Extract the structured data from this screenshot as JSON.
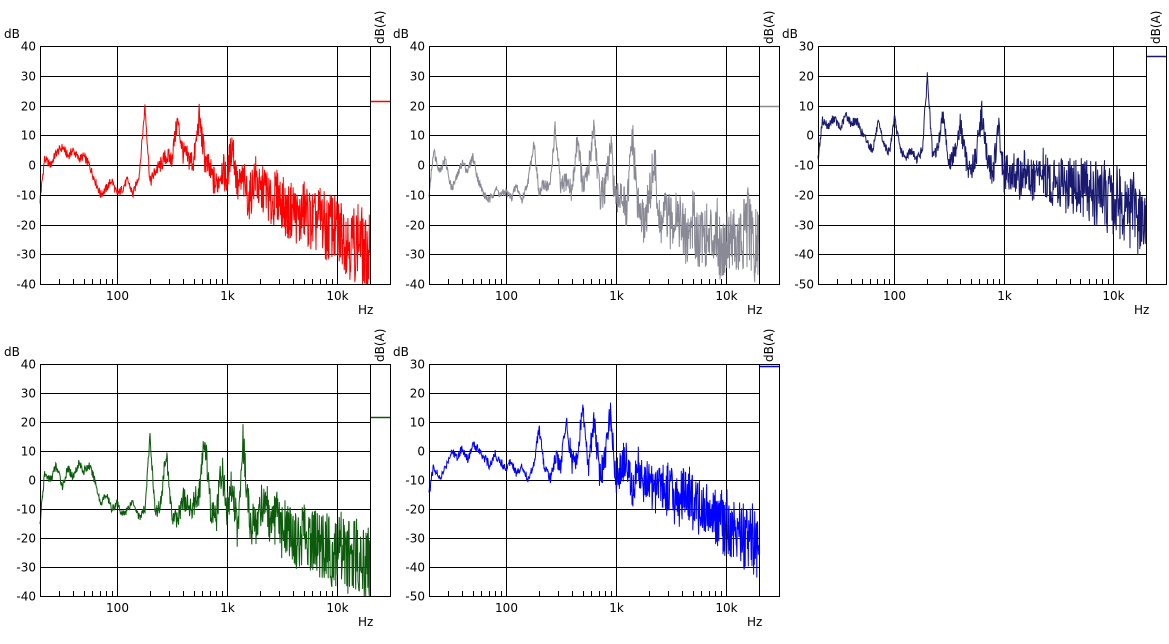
{
  "chart_data": [
    {
      "type": "line",
      "color": "#ff0000",
      "ylabel": "dB",
      "xlabel": "Hz",
      "level_label": "dB(A)",
      "level_fill": 0.77,
      "xscale": "log",
      "xlim": [
        20,
        20000
      ],
      "ylim": [
        -40,
        40
      ],
      "yticks": [
        40,
        30,
        20,
        10,
        0,
        -10,
        -20,
        -30,
        -40
      ],
      "xticks": [
        {
          "v": 100,
          "label": "100"
        },
        {
          "v": 1000,
          "label": "1k"
        },
        {
          "v": 10000,
          "label": "10k"
        }
      ],
      "grid": true,
      "series": [
        {
          "x": [
            20,
            22,
            25,
            28,
            32,
            36,
            40,
            45,
            50,
            56,
            63,
            71,
            80,
            90,
            100,
            112,
            125,
            140,
            160,
            180,
            200,
            224,
            250,
            280,
            315,
            355,
            400,
            450,
            500,
            560,
            630,
            710,
            800,
            900,
            1000,
            1120,
            1250,
            1400,
            1600,
            1800,
            2000,
            2240,
            2500,
            2800,
            3150,
            3550,
            4000,
            4500,
            5000,
            5600,
            6300,
            7100,
            8000,
            9000,
            10000,
            11200,
            12500,
            14000,
            16000,
            18000,
            20000
          ],
          "y": [
            -12,
            2,
            0,
            4,
            6,
            3,
            5,
            2,
            3,
            0,
            -5,
            -10,
            -8,
            -5,
            -10,
            -8,
            -5,
            -10,
            -3,
            20,
            -6,
            -2,
            0,
            3,
            2,
            15,
            4,
            2,
            1,
            16,
            2,
            -3,
            -7,
            -1,
            -5,
            8,
            -8,
            -5,
            -12,
            -3,
            -10,
            -7,
            -14,
            -10,
            -12,
            -17,
            -14,
            -19,
            -15,
            -18,
            -20,
            -17,
            -22,
            -20,
            -24,
            -22,
            -25,
            -27,
            -24,
            -32,
            -28
          ]
        }
      ]
    },
    {
      "type": "line",
      "color": "#8a8a96",
      "ylabel": "dB",
      "xlabel": "Hz",
      "level_label": "dB(A)",
      "level_fill": 0.75,
      "xscale": "log",
      "xlim": [
        20,
        20000
      ],
      "ylim": [
        -40,
        40
      ],
      "yticks": [
        40,
        30,
        20,
        10,
        0,
        -10,
        -20,
        -30,
        -40
      ],
      "xticks": [
        {
          "v": 100,
          "label": "100"
        },
        {
          "v": 1000,
          "label": "1k"
        },
        {
          "v": 10000,
          "label": "10k"
        }
      ],
      "grid": true,
      "series": [
        {
          "x": [
            20,
            22,
            25,
            28,
            32,
            36,
            40,
            45,
            50,
            56,
            63,
            71,
            80,
            90,
            100,
            112,
            125,
            140,
            160,
            180,
            200,
            224,
            250,
            280,
            315,
            355,
            400,
            450,
            500,
            560,
            630,
            710,
            800,
            900,
            1000,
            1120,
            1250,
            1400,
            1600,
            1800,
            2000,
            2240,
            2500,
            2800,
            3150,
            3550,
            4000,
            4500,
            5000,
            5600,
            6300,
            7100,
            8000,
            9000,
            10000,
            11200,
            12500,
            14000,
            16000,
            18000,
            20000
          ],
          "y": [
            -10,
            5,
            -2,
            2,
            -8,
            -4,
            1,
            -2,
            3,
            -5,
            -10,
            -12,
            -8,
            -10,
            -9,
            -11,
            -7,
            -12,
            -5,
            8,
            -10,
            -6,
            -8,
            12,
            -8,
            -5,
            -9,
            10,
            -8,
            -3,
            14,
            -10,
            -8,
            6,
            -14,
            -8,
            -18,
            10,
            -15,
            -20,
            -12,
            2,
            -22,
            -16,
            -20,
            -14,
            -22,
            -25,
            -18,
            -24,
            -22,
            -26,
            -20,
            -28,
            -25,
            -22,
            -28,
            -26,
            -20,
            -30,
            -26
          ]
        }
      ]
    },
    {
      "type": "line",
      "color": "#191970",
      "ylabel": "dB",
      "xlabel": "Hz",
      "level_label": "dB(A)",
      "level_fill": 0.96,
      "xscale": "log",
      "xlim": [
        20,
        20000
      ],
      "ylim": [
        -50,
        30
      ],
      "yticks": [
        30,
        20,
        10,
        0,
        -10,
        -20,
        -30,
        -40,
        -50
      ],
      "xticks": [
        {
          "v": 100,
          "label": "100"
        },
        {
          "v": 1000,
          "label": "1k"
        },
        {
          "v": 10000,
          "label": "10k"
        }
      ],
      "grid": true,
      "series": [
        {
          "x": [
            20,
            22,
            25,
            28,
            32,
            36,
            40,
            45,
            50,
            56,
            63,
            71,
            80,
            90,
            100,
            112,
            125,
            140,
            160,
            180,
            200,
            224,
            250,
            280,
            315,
            355,
            400,
            450,
            500,
            560,
            630,
            710,
            800,
            900,
            1000,
            1120,
            1250,
            1400,
            1600,
            1800,
            2000,
            2240,
            2500,
            2800,
            3150,
            3550,
            4000,
            4500,
            5000,
            5600,
            6300,
            7100,
            8000,
            9000,
            10000,
            11200,
            12500,
            14000,
            16000,
            18000,
            20000
          ],
          "y": [
            -8,
            5,
            3,
            6,
            2,
            7,
            4,
            5,
            1,
            -2,
            -5,
            4,
            -3,
            -6,
            6,
            -4,
            -8,
            -5,
            -8,
            -5,
            20,
            -8,
            -4,
            8,
            -10,
            -6,
            4,
            -8,
            -12,
            -7,
            8,
            -10,
            -12,
            2,
            -14,
            -12,
            -13,
            -15,
            -11,
            -16,
            -14,
            -12,
            -15,
            -17,
            -14,
            -18,
            -16,
            -18,
            -17,
            -19,
            -18,
            -20,
            -19,
            -22,
            -21,
            -22,
            -24,
            -25,
            -26,
            -28,
            -30
          ]
        }
      ]
    },
    {
      "type": "line",
      "color": "#0a5c0a",
      "ylabel": "dB",
      "xlabel": "Hz",
      "level_label": "dB(A)",
      "level_fill": 0.77,
      "xscale": "log",
      "xlim": [
        20,
        20000
      ],
      "ylim": [
        -40,
        40
      ],
      "yticks": [
        40,
        30,
        20,
        10,
        0,
        -10,
        -20,
        -30,
        -40
      ],
      "xticks": [
        {
          "v": 100,
          "label": "100"
        },
        {
          "v": 1000,
          "label": "1k"
        },
        {
          "v": 10000,
          "label": "10k"
        }
      ],
      "grid": true,
      "series": [
        {
          "x": [
            20,
            22,
            25,
            28,
            32,
            36,
            40,
            45,
            50,
            56,
            63,
            71,
            80,
            90,
            100,
            112,
            125,
            140,
            160,
            180,
            200,
            224,
            250,
            280,
            315,
            355,
            400,
            450,
            500,
            560,
            630,
            710,
            800,
            900,
            1000,
            1120,
            1250,
            1400,
            1600,
            1800,
            2000,
            2240,
            2500,
            2800,
            3150,
            3550,
            4000,
            4500,
            5000,
            5600,
            6300,
            7100,
            8000,
            9000,
            10000,
            11200,
            12500,
            14000,
            16000,
            18000,
            20000
          ],
          "y": [
            -15,
            2,
            0,
            5,
            -2,
            4,
            1,
            6,
            3,
            5,
            0,
            -8,
            -5,
            -10,
            -8,
            -12,
            -10,
            -7,
            -13,
            -10,
            15,
            -12,
            -8,
            10,
            -12,
            -14,
            -6,
            -10,
            -8,
            -4,
            14,
            -10,
            -14,
            5,
            -12,
            0,
            -18,
            14,
            -14,
            -16,
            -10,
            -5,
            -20,
            -12,
            -18,
            -15,
            -20,
            -22,
            -18,
            -22,
            -20,
            -24,
            -22,
            -26,
            -24,
            -22,
            -27,
            -28,
            -25,
            -30,
            -28
          ]
        }
      ]
    },
    {
      "type": "line",
      "color": "#0000ff",
      "ylabel": "dB",
      "xlabel": "Hz",
      "level_label": "dB(A)",
      "level_fill": 0.99,
      "xscale": "log",
      "xlim": [
        20,
        20000
      ],
      "ylim": [
        -50,
        30
      ],
      "yticks": [
        30,
        20,
        10,
        0,
        -10,
        -20,
        -30,
        -40,
        -50
      ],
      "xticks": [
        {
          "v": 100,
          "label": "100"
        },
        {
          "v": 1000,
          "label": "1k"
        },
        {
          "v": 10000,
          "label": "10k"
        }
      ],
      "grid": true,
      "series": [
        {
          "x": [
            20,
            22,
            25,
            28,
            32,
            36,
            40,
            45,
            50,
            56,
            63,
            71,
            80,
            90,
            100,
            112,
            125,
            140,
            160,
            180,
            200,
            224,
            250,
            280,
            315,
            355,
            400,
            450,
            500,
            560,
            630,
            710,
            800,
            900,
            1000,
            1120,
            1250,
            1400,
            1600,
            1800,
            2000,
            2240,
            2500,
            2800,
            3150,
            3550,
            4000,
            4500,
            5000,
            5600,
            6300,
            7100,
            8000,
            9000,
            10000,
            11200,
            12500,
            14000,
            16000,
            18000,
            20000
          ],
          "y": [
            -15,
            -5,
            -10,
            -6,
            0,
            -2,
            1,
            -3,
            2,
            1,
            -2,
            -5,
            -1,
            -4,
            -6,
            -3,
            -8,
            -5,
            -10,
            -4,
            8,
            -6,
            -10,
            -2,
            -5,
            10,
            -4,
            -2,
            15,
            -6,
            12,
            -8,
            -3,
            15,
            -10,
            -5,
            -2,
            -14,
            -6,
            -12,
            -10,
            -15,
            -8,
            -14,
            -12,
            -18,
            -16,
            -14,
            -18,
            -20,
            -19,
            -22,
            -24,
            -23,
            -25,
            -26,
            -27,
            -28,
            -30,
            -32,
            -33
          ]
        }
      ]
    }
  ]
}
